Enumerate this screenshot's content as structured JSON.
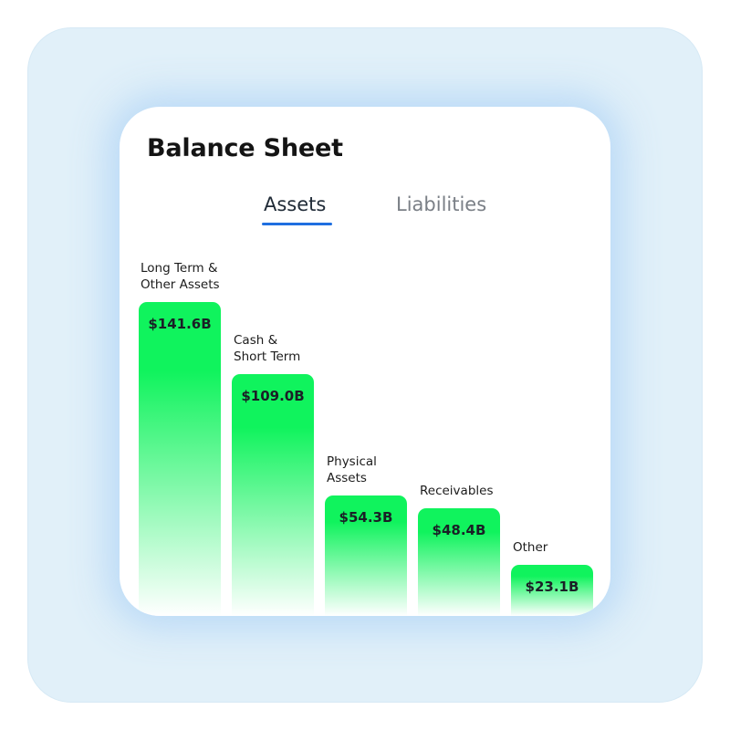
{
  "card": {
    "title": "Balance Sheet"
  },
  "tabs": [
    {
      "label": "Assets",
      "active": true
    },
    {
      "label": "Liabilities",
      "active": false
    }
  ],
  "colors": {
    "bar_top": "#10f35d",
    "bar_bottom": "#ffffff",
    "tab_underline": "#1f6fe0",
    "frame_background": "#e1f0f9"
  },
  "chart_data": {
    "type": "bar",
    "categories": [
      "Long Term &\nOther Assets",
      "Cash &\nShort Term",
      "Physical\nAssets",
      "Receivables",
      "Other"
    ],
    "values": [
      141.6,
      109.0,
      54.3,
      48.4,
      23.1
    ],
    "value_labels": [
      "$141.6B",
      "$109.0B",
      "$54.3B",
      "$48.4B",
      "$23.1B"
    ],
    "unit": "B",
    "title": "",
    "xlabel": "",
    "ylabel": ""
  }
}
